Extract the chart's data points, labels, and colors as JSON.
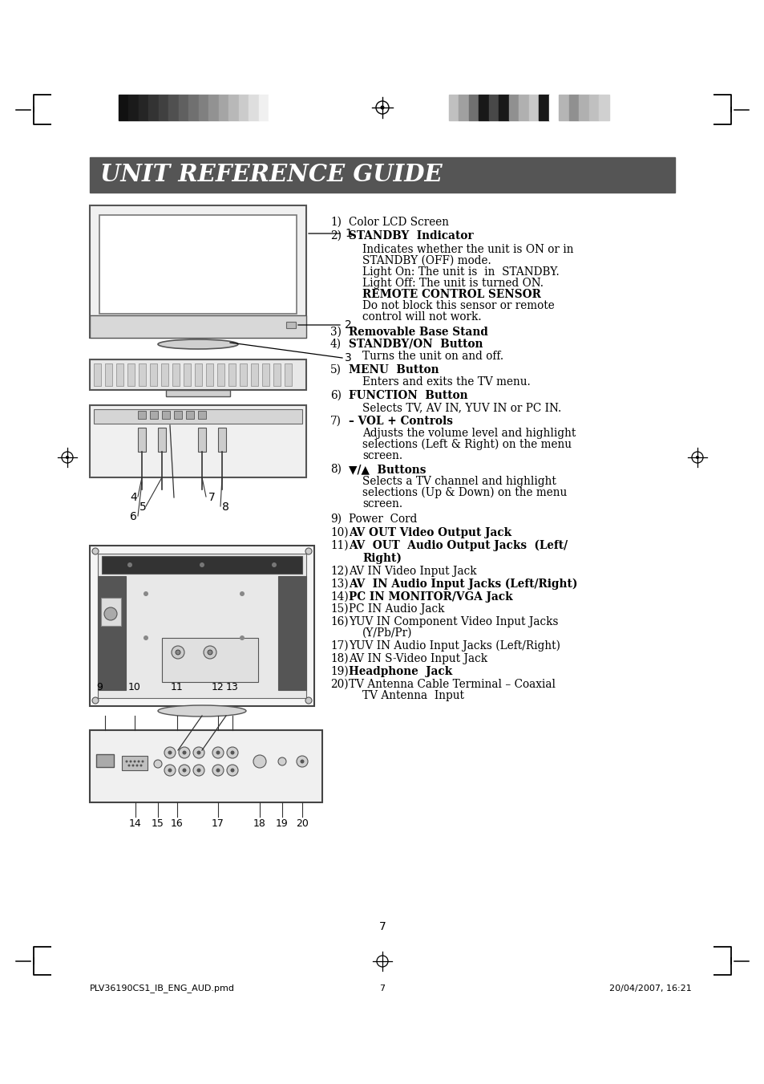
{
  "bg_color": "#ffffff",
  "title": "UNIT REFERENCE GUIDE",
  "title_bg": "#555555",
  "title_color": "#ffffff",
  "page_number": "7",
  "footer_left": "PLV36190CS1_IB_ENG_AUD.pmd",
  "footer_center": "7",
  "footer_right": "20/04/2007, 16:21",
  "left_bar_colors": [
    "#111111",
    "#1a1a1a",
    "#252525",
    "#333333",
    "#404040",
    "#505050",
    "#606060",
    "#707070",
    "#808080",
    "#929292",
    "#a5a5a5",
    "#b8b8b8",
    "#cbcbcb",
    "#dedede",
    "#f0f0f0",
    "#ffffff"
  ],
  "right_bar_colors": [
    "#c0c0c0",
    "#a0a0a0",
    "#707070",
    "#181818",
    "#484848",
    "#181818",
    "#909090",
    "#b0b0b0",
    "#c8c8c8",
    "#181818",
    "#ffffff",
    "#b5b5b5",
    "#909090",
    "#b0b0b0",
    "#c0c0c0",
    "#d0d0d0"
  ],
  "items": [
    [
      1,
      "1)",
      "Color LCD Screen",
      false,
      false
    ],
    [
      2,
      "2)",
      "STANDBY  Indicator",
      true,
      false
    ],
    [
      3,
      "",
      "Indicates whether the unit is ON or in",
      false,
      true
    ],
    [
      4,
      "",
      "STANDBY (OFF) mode.",
      false,
      true
    ],
    [
      5,
      "",
      "Light On: The unit is in STANDBY.",
      false,
      true
    ],
    [
      6,
      "",
      "Light Off: The unit is turned ON.",
      false,
      true
    ],
    [
      7,
      "",
      "REMOTE CONTROL SENSOR",
      true,
      true
    ],
    [
      8,
      "",
      "Do not block this sensor or remote",
      false,
      true
    ],
    [
      9,
      "",
      "control will not work.",
      false,
      true
    ],
    [
      10,
      "3)",
      "Removable Base Stand",
      true,
      false
    ],
    [
      11,
      "4)",
      "STANDBY/ON  Button",
      true,
      false
    ],
    [
      12,
      "",
      "Turns the unit on and off.",
      false,
      true
    ],
    [
      13,
      "5)",
      "MENU  Button",
      true,
      false
    ],
    [
      14,
      "",
      "Enters and exits the TV menu.",
      false,
      true
    ],
    [
      15,
      "6)",
      "FUNCTION  Button",
      true,
      false
    ],
    [
      16,
      "",
      "Selects TV, AV IN, YUV IN or PC IN.",
      false,
      true
    ],
    [
      17,
      "7)",
      "– VOL + Controls",
      true,
      false
    ],
    [
      18,
      "",
      "Adjusts the volume level and highlight",
      false,
      true
    ],
    [
      19,
      "",
      "selections (Left & Right) on the menu",
      false,
      true
    ],
    [
      20,
      "",
      "screen.",
      false,
      true
    ],
    [
      21,
      "8)",
      "▼/▲  Buttons",
      true,
      false
    ],
    [
      22,
      "",
      "Selects a TV channel and highlight",
      false,
      true
    ],
    [
      23,
      "",
      "selections (Up & Down) on the menu",
      false,
      true
    ],
    [
      24,
      "",
      "screen.",
      false,
      true
    ],
    [
      25,
      "9)",
      "Power  Cord",
      false,
      false
    ],
    [
      26,
      "10)",
      "AV OUT Video Output Jack",
      true,
      false
    ],
    [
      27,
      "11)",
      "AV  OUT  Audio Output Jacks  (Left/",
      true,
      false
    ],
    [
      28,
      "",
      "Right)",
      true,
      true
    ],
    [
      29,
      "12)",
      "AV IN Video Input Jack",
      false,
      false
    ],
    [
      30,
      "13)",
      "AV  IN Audio Input Jacks (Left/Right)",
      true,
      false
    ],
    [
      31,
      "14)",
      "PC IN MONITOR/VGA Jack",
      true,
      false
    ],
    [
      32,
      "15)",
      "PC IN Audio Jack",
      false,
      false
    ],
    [
      33,
      "16)",
      "YUV IN Component Video Input Jacks",
      false,
      false
    ],
    [
      34,
      "",
      "(Y/Pb/Pr)",
      false,
      true
    ],
    [
      35,
      "17)",
      "YUV IN Audio Input Jacks (Left/Right)",
      false,
      false
    ],
    [
      36,
      "18)",
      "AV IN S-Video Input Jack",
      false,
      false
    ],
    [
      37,
      "19)",
      "Headphone  Jack",
      true,
      false
    ],
    [
      38,
      "20)",
      "TV Antenna Cable Terminal – Coaxial",
      false,
      false
    ],
    [
      39,
      "",
      "TV Antenna  Input",
      false,
      true
    ]
  ]
}
